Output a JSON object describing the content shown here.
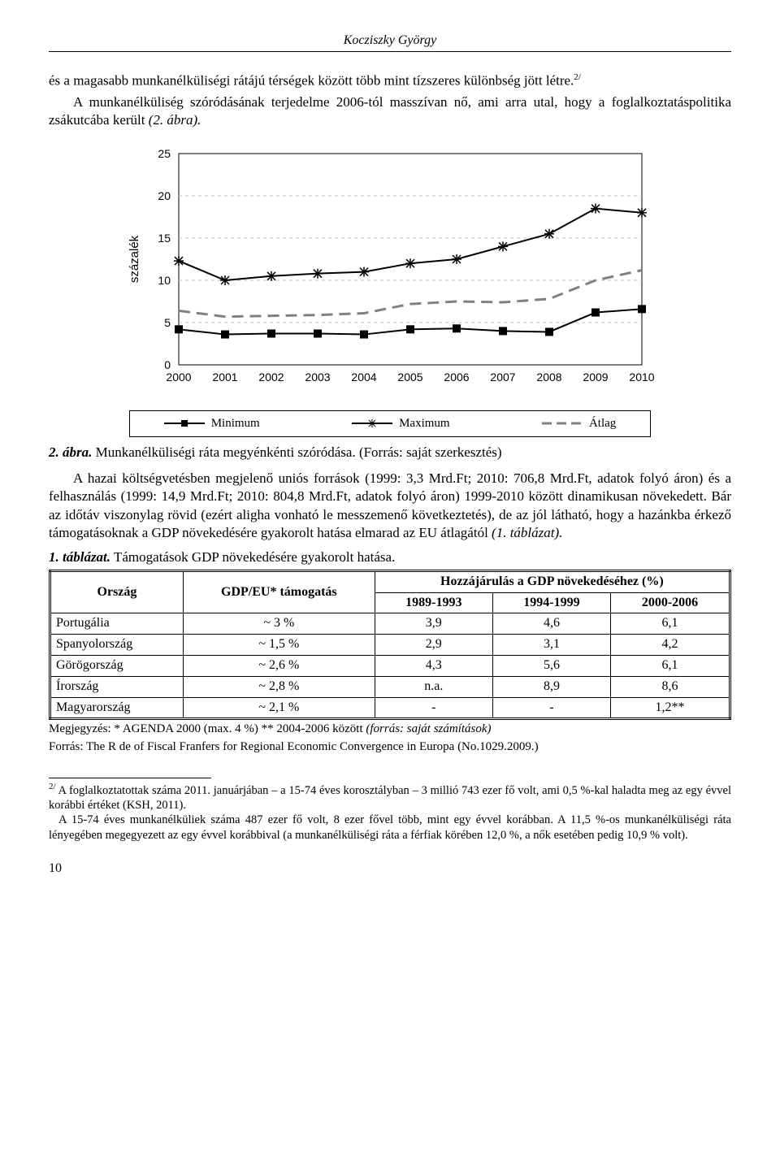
{
  "header": {
    "author": "Kocziszky György"
  },
  "para1a": "és a magasabb munkanélküliségi rátájú térségek között több mint tízszeres különbség jött létre.",
  "sup1": "2/",
  "para1b": "A munkanélküliség szóródásának terjedelme 2006-tól masszívan nő, ami arra utal, hogy a foglalkoztatáspolitika zsákutcába került ",
  "para1c": "(2. ábra).",
  "chart": {
    "type": "line",
    "ylabel": "százalék",
    "ylim": [
      0,
      25
    ],
    "ytick_step": 5,
    "years": [
      "2000",
      "2001",
      "2002",
      "2003",
      "2004",
      "2005",
      "2006",
      "2007",
      "2008",
      "2009",
      "2010"
    ],
    "series": {
      "minimum": {
        "label": "Minimum",
        "color": "#000000",
        "marker": "square",
        "values": [
          4.2,
          3.6,
          3.7,
          3.7,
          3.6,
          4.2,
          4.3,
          4.0,
          3.9,
          6.2,
          6.6
        ]
      },
      "maximum": {
        "label": "Maximum",
        "color": "#000000",
        "marker": "asterisk",
        "values": [
          12.3,
          10.0,
          10.5,
          10.8,
          11.0,
          12.0,
          12.5,
          14.0,
          15.5,
          18.5,
          18.0
        ]
      },
      "atlag": {
        "label": "Átlag",
        "color": "#808080",
        "marker": "dash",
        "values": [
          6.4,
          5.7,
          5.8,
          5.9,
          6.1,
          7.2,
          7.5,
          7.4,
          7.8,
          10.0,
          11.2
        ]
      }
    },
    "grid_color": "#bfbfbf",
    "plot_border": "#000000",
    "legend_border": "#000000",
    "label_fontsize": 15,
    "tick_fontsize": 14
  },
  "fig_caption": {
    "num": "2. ábra.",
    "text": " Munkanélküliségi ráta megyénkénti szóródása. (Forrás: saját szerkesztés)"
  },
  "para2": "A hazai költségvetésben megjelenő uniós források (1999: 3,3 Mrd.Ft; 2010: 706,8 Mrd.Ft, adatok folyó áron) és a felhasználás (1999: 14,9 Mrd.Ft; 2010: 804,8 Mrd.Ft, adatok folyó áron) 1999-2010 között dinamikusan növekedett. Bár az időtáv viszonylag rövid (ezért aligha vonható le messzemenő következtetés), de az jól látható, hogy a hazánkba érkező támogatásoknak a GDP növekedésére gyakorolt hatása elmarad az EU átlagától ",
  "para2i": "(1. táblázat).",
  "tbl_caption": {
    "num": "1. táblázat.",
    "text": " Támogatások GDP növekedésére gyakorolt hatása."
  },
  "table": {
    "head": {
      "c1": "Ország",
      "c2": "GDP/EU* támogatás",
      "c3": "Hozzájárulás a GDP növekedéséhez (%)",
      "p1": "1989-1993",
      "p2": "1994-1999",
      "p3": "2000-2006"
    },
    "rows": [
      {
        "country": "Portugália",
        "gdp": "~ 3 %",
        "v1": "3,9",
        "v2": "4,6",
        "v3": "6,1"
      },
      {
        "country": "Spanyolország",
        "gdp": "~ 1,5 %",
        "v1": "2,9",
        "v2": "3,1",
        "v3": "4,2"
      },
      {
        "country": "Görögország",
        "gdp": "~ 2,6 %",
        "v1": "4,3",
        "v2": "5,6",
        "v3": "6,1"
      },
      {
        "country": "Írország",
        "gdp": "~ 2,8 %",
        "v1": "n.a.",
        "v2": "8,9",
        "v3": "8,6"
      },
      {
        "country": "Magyarország",
        "gdp": "~ 2,1 %",
        "v1": "-",
        "v2": "-",
        "v3": "1,2**"
      }
    ]
  },
  "tbl_note1": "Megjegyzés: * AGENDA 2000 (max. 4 %) ** 2004-2006 között ",
  "tbl_note1i": "(forrás: saját számítások)",
  "tbl_note2": "Forrás: The R de of Fiscal Franfers for Regional Economic Convergence in Europa (No.1029.2009.)",
  "footnote": {
    "mark": "2/",
    "t1": " A foglalkoztatottak száma 2011. januárjában – a 15-74 éves korosztályban – 3 millió 743 ezer fő volt, ami 0,5 %-kal haladta meg az egy évvel korábbi értéket (KSH, 2011).",
    "t2": "A 15-74 éves munkanélküliek száma 487 ezer fő volt, 8 ezer fővel több, mint egy évvel korábban. A 11,5 %-os munkanélküliségi ráta lényegében megegyezett az egy évvel korábbival (a munkanélküliségi ráta a férfiak körében 12,0 %, a nők esetében pedig 10,9 % volt)."
  },
  "pagenum": "10"
}
